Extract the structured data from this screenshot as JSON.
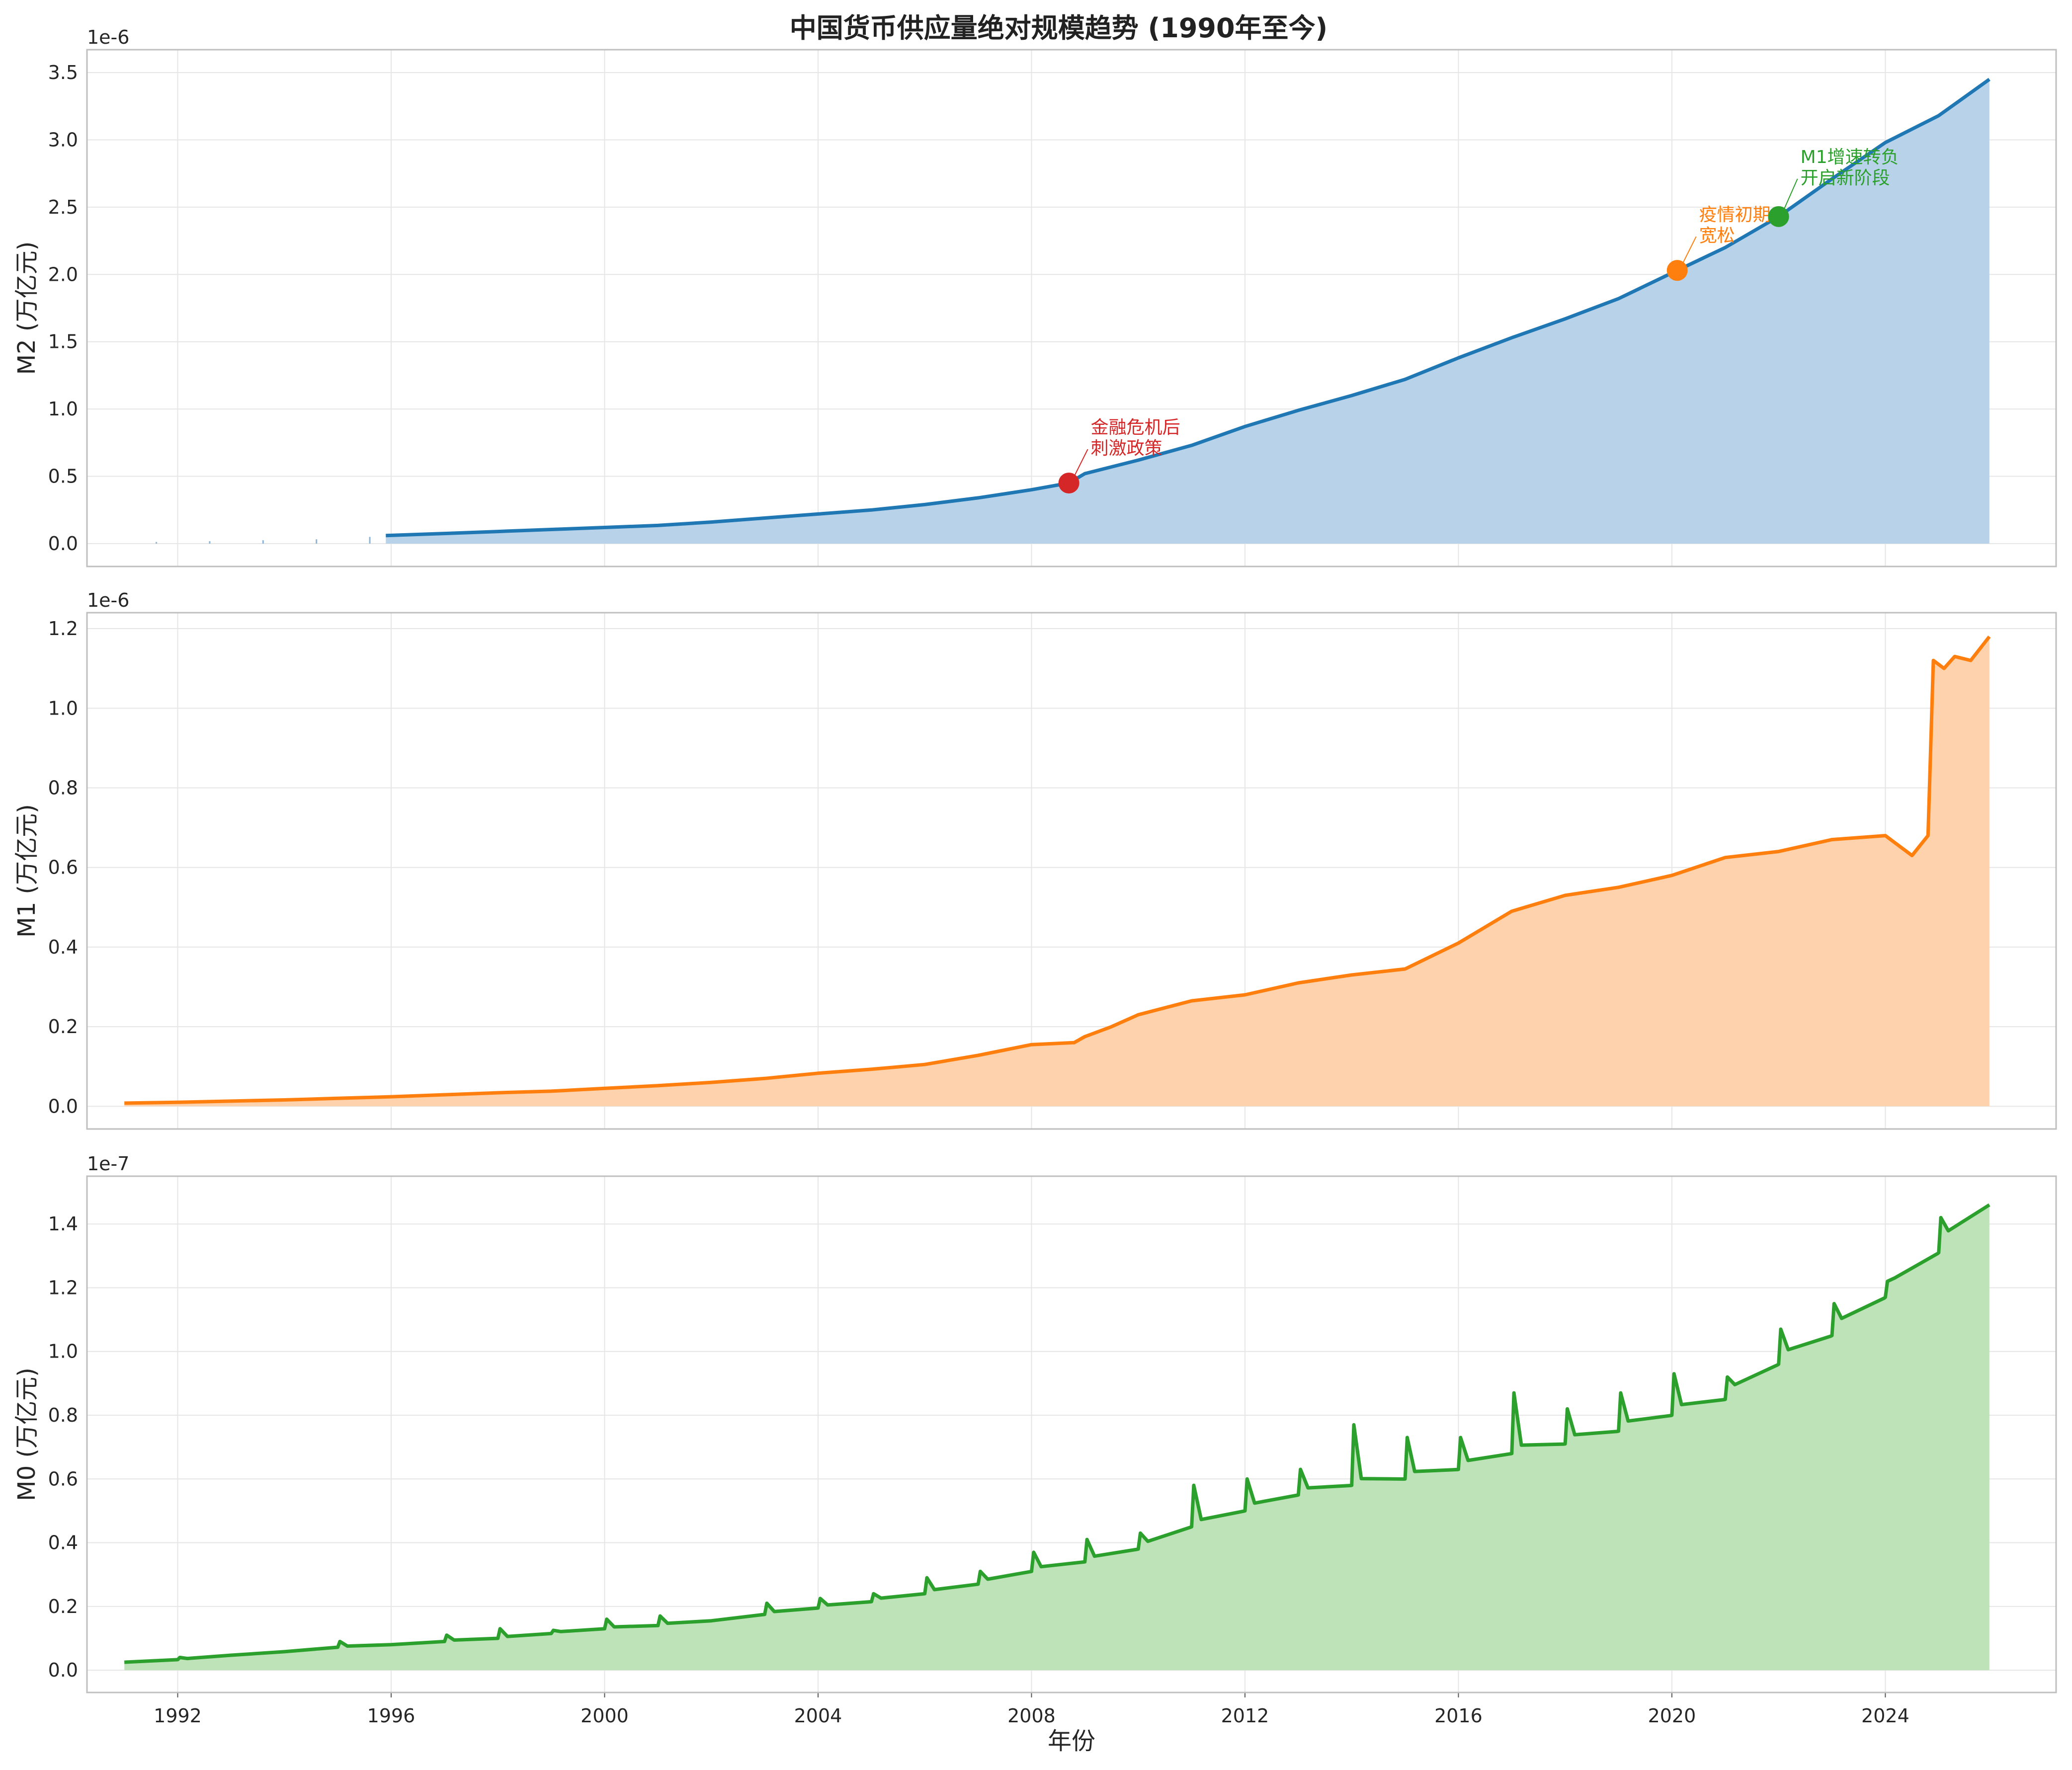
{
  "chart_data": {
    "type": "area",
    "title": "中国货币供应量绝对规模趋势 (1990年至今)",
    "xlabel": "年份",
    "x_ticks": [
      "1992",
      "1996",
      "2000",
      "2004",
      "2008",
      "2012",
      "2016",
      "2020",
      "2024"
    ],
    "xlim": [
      1990.3,
      2027.2
    ],
    "grid": true,
    "panels": [
      {
        "series_name": "M2",
        "ylabel": "M2 (万亿元)",
        "scale_label": "1e-6",
        "ylim": [
          -0.17,
          3.67
        ],
        "y_ticks": [
          "0.0",
          "0.5",
          "1.0",
          "1.5",
          "2.0",
          "2.5",
          "3.0",
          "3.5"
        ],
        "color": "#1f77b4",
        "fill_color": "#b8d3e9",
        "pre_series_spikes": {
          "x": [
            1991,
            1992,
            1993,
            1994,
            1995
          ],
          "values": [
            0.012,
            0.018,
            0.025,
            0.032,
            0.05
          ]
        },
        "points": [
          [
            1995.9,
            0.06
          ],
          [
            1997,
            0.075
          ],
          [
            1998,
            0.09
          ],
          [
            1999,
            0.105
          ],
          [
            2000,
            0.12
          ],
          [
            2001,
            0.135
          ],
          [
            2002,
            0.16
          ],
          [
            2003,
            0.19
          ],
          [
            2004,
            0.22
          ],
          [
            2005,
            0.25
          ],
          [
            2006,
            0.29
          ],
          [
            2007,
            0.34
          ],
          [
            2008,
            0.4
          ],
          [
            2008.7,
            0.45
          ],
          [
            2009,
            0.52
          ],
          [
            2010,
            0.62
          ],
          [
            2011,
            0.73
          ],
          [
            2012,
            0.87
          ],
          [
            2013,
            0.99
          ],
          [
            2014,
            1.1
          ],
          [
            2015,
            1.22
          ],
          [
            2016,
            1.38
          ],
          [
            2017,
            1.53
          ],
          [
            2018,
            1.67
          ],
          [
            2019,
            1.82
          ],
          [
            2020.1,
            2.03
          ],
          [
            2021,
            2.2
          ],
          [
            2022,
            2.43
          ],
          [
            2023,
            2.71
          ],
          [
            2024,
            2.98
          ],
          [
            2025,
            3.18
          ],
          [
            2025.95,
            3.45
          ]
        ],
        "markers": [
          {
            "x": 2008.7,
            "y": 0.45,
            "color": "#d62728",
            "label": "金融危机后\n刺激政策"
          },
          {
            "x": 2020.1,
            "y": 2.03,
            "color": "#ff7f0e",
            "label": "疫情初期\n宽松"
          },
          {
            "x": 2022.0,
            "y": 2.43,
            "color": "#2ca02c",
            "label": "M1增速转负\n开启新阶段"
          }
        ]
      },
      {
        "series_name": "M1",
        "ylabel": "M1 (万亿元)",
        "scale_label": "1e-6",
        "ylim": [
          -0.057,
          1.24
        ],
        "y_ticks": [
          "0.0",
          "0.2",
          "0.4",
          "0.6",
          "0.8",
          "1.0",
          "1.2"
        ],
        "color": "#ff7f0e",
        "fill_color": "#fdd2ac",
        "points": [
          [
            1991,
            0.008
          ],
          [
            1992,
            0.01
          ],
          [
            1993,
            0.013
          ],
          [
            1994,
            0.016
          ],
          [
            1995,
            0.02
          ],
          [
            1996,
            0.024
          ],
          [
            1997,
            0.029
          ],
          [
            1998,
            0.034
          ],
          [
            1999,
            0.038
          ],
          [
            2000,
            0.045
          ],
          [
            2001,
            0.052
          ],
          [
            2002,
            0.06
          ],
          [
            2003,
            0.07
          ],
          [
            2004,
            0.083
          ],
          [
            2005,
            0.093
          ],
          [
            2006,
            0.105
          ],
          [
            2007,
            0.128
          ],
          [
            2008,
            0.155
          ],
          [
            2008.8,
            0.16
          ],
          [
            2009,
            0.175
          ],
          [
            2009.5,
            0.2
          ],
          [
            2010,
            0.23
          ],
          [
            2011,
            0.265
          ],
          [
            2012,
            0.28
          ],
          [
            2013,
            0.31
          ],
          [
            2014,
            0.33
          ],
          [
            2015,
            0.345
          ],
          [
            2016,
            0.41
          ],
          [
            2017,
            0.49
          ],
          [
            2018,
            0.53
          ],
          [
            2019,
            0.55
          ],
          [
            2020,
            0.58
          ],
          [
            2021,
            0.625
          ],
          [
            2022,
            0.64
          ],
          [
            2023,
            0.67
          ],
          [
            2024,
            0.68
          ],
          [
            2024.5,
            0.63
          ],
          [
            2024.8,
            0.68
          ],
          [
            2024.9,
            1.12
          ],
          [
            2025.1,
            1.1
          ],
          [
            2025.3,
            1.13
          ],
          [
            2025.6,
            1.12
          ],
          [
            2025.95,
            1.18
          ]
        ]
      },
      {
        "series_name": "M0",
        "ylabel": "M0 (万亿元)",
        "scale_label": "1e-7",
        "ylim": [
          -0.07,
          1.55
        ],
        "y_ticks": [
          "0.0",
          "0.2",
          "0.4",
          "0.6",
          "0.8",
          "1.0",
          "1.2",
          "1.4"
        ],
        "color": "#2ca02c",
        "fill_color": "#bfe3b9",
        "points": [
          [
            1991,
            0.025
          ],
          [
            1992,
            0.033
          ],
          [
            1993,
            0.047
          ],
          [
            1994,
            0.058
          ],
          [
            1995,
            0.072
          ],
          [
            1996,
            0.08
          ],
          [
            1997,
            0.09
          ],
          [
            1998,
            0.1
          ],
          [
            1999,
            0.115
          ],
          [
            2000,
            0.13
          ],
          [
            2001,
            0.14
          ],
          [
            2002,
            0.155
          ],
          [
            2003,
            0.175
          ],
          [
            2004,
            0.195
          ],
          [
            2005,
            0.215
          ],
          [
            2006,
            0.24
          ],
          [
            2007,
            0.27
          ],
          [
            2008,
            0.31
          ],
          [
            2009,
            0.34
          ],
          [
            2010,
            0.38
          ],
          [
            2011,
            0.45
          ],
          [
            2012,
            0.5
          ],
          [
            2013,
            0.55
          ],
          [
            2014,
            0.58
          ],
          [
            2015,
            0.6
          ],
          [
            2016,
            0.63
          ],
          [
            2017,
            0.68
          ],
          [
            2018,
            0.71
          ],
          [
            2019,
            0.75
          ],
          [
            2020,
            0.8
          ],
          [
            2021,
            0.85
          ],
          [
            2022,
            0.96
          ],
          [
            2023,
            1.05
          ],
          [
            2024,
            1.17
          ],
          [
            2025,
            1.31
          ],
          [
            2025.95,
            1.46
          ]
        ],
        "spikes": [
          [
            1992,
            0.04
          ],
          [
            1995,
            0.09
          ],
          [
            1997,
            0.11
          ],
          [
            1998,
            0.13
          ],
          [
            1999,
            0.125
          ],
          [
            2000,
            0.16
          ],
          [
            2001,
            0.17
          ],
          [
            2003,
            0.21
          ],
          [
            2004,
            0.225
          ],
          [
            2005,
            0.24
          ],
          [
            2006,
            0.29
          ],
          [
            2007,
            0.31
          ],
          [
            2008,
            0.37
          ],
          [
            2009,
            0.41
          ],
          [
            2010,
            0.43
          ],
          [
            2011,
            0.58
          ],
          [
            2012,
            0.6
          ],
          [
            2013,
            0.63
          ],
          [
            2014,
            0.77
          ],
          [
            2015,
            0.73
          ],
          [
            2016,
            0.73
          ],
          [
            2017,
            0.87
          ],
          [
            2018,
            0.82
          ],
          [
            2019,
            0.87
          ],
          [
            2020,
            0.93
          ],
          [
            2021,
            0.92
          ],
          [
            2022,
            1.07
          ],
          [
            2023,
            1.15
          ],
          [
            2024,
            1.22
          ],
          [
            2025,
            1.42
          ]
        ]
      }
    ]
  }
}
